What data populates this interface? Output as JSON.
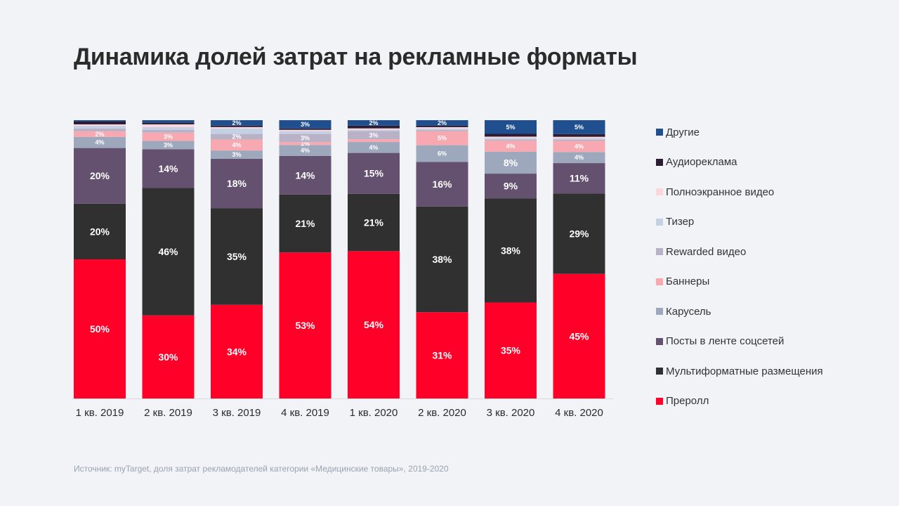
{
  "title": "Динамика долей затрат на рекламные форматы",
  "source": "Источник: myTarget, доля затрат рекламодателей категории «Медицинские товары», 2019-2020",
  "chart_data": {
    "type": "bar",
    "stacked": true,
    "normalized_percent": true,
    "title": "Динамика долей затрат на рекламные форматы",
    "xlabel": "",
    "ylabel": "",
    "ylim": [
      0,
      100
    ],
    "grid": false,
    "legend_position": "right",
    "categories": [
      "1 кв. 2019",
      "2 кв. 2019",
      "3 кв. 2019",
      "4 кв. 2019",
      "1 кв. 2020",
      "2 кв. 2020",
      "3 кв. 2020",
      "4 кв. 2020"
    ],
    "series": [
      {
        "name": "Преролл",
        "color": "#ff0028",
        "values": [
          50,
          30,
          34,
          53,
          54,
          31,
          35,
          45
        ]
      },
      {
        "name": "Мультиформатные размещения",
        "color": "#303030",
        "values": [
          20,
          46,
          35,
          21,
          21,
          38,
          38,
          29
        ]
      },
      {
        "name": "Посты в ленте соцсетей",
        "color": "#64506f",
        "values": [
          20,
          14,
          18,
          14,
          15,
          16,
          9,
          11
        ]
      },
      {
        "name": "Карусель",
        "color": "#9ea8bd",
        "values": [
          4,
          3,
          3,
          4,
          4,
          6,
          8,
          4
        ]
      },
      {
        "name": "Баннеры",
        "color": "#f8a8b0",
        "values": [
          2,
          3,
          4,
          1,
          1,
          5,
          4,
          4
        ]
      },
      {
        "name": "Rewarded видео",
        "color": "#b9b2c6",
        "values": [
          1,
          1,
          2,
          3,
          3,
          0.5,
          0.5,
          0.5
        ]
      },
      {
        "name": "Тизер",
        "color": "#c4d0e4",
        "values": [
          1,
          1,
          2,
          1,
          0.5,
          0.5,
          0.5,
          0.5
        ]
      },
      {
        "name": "Полноэкранное видео",
        "color": "#fbd6da",
        "values": [
          0.5,
          1,
          0.5,
          0.5,
          0.5,
          0.5,
          0.5,
          0.5
        ]
      },
      {
        "name": "Аудиореклама",
        "color": "#2d1a33",
        "values": [
          1,
          0.5,
          0.5,
          0.5,
          1,
          0.5,
          1,
          1
        ]
      },
      {
        "name": "Другие",
        "color": "#1f4f8f",
        "values": [
          0.5,
          1,
          2,
          3,
          2,
          2,
          5,
          5
        ]
      }
    ],
    "bar_labels": [
      [
        "50%",
        "30%",
        "34%",
        "53%",
        "54%",
        "31%",
        "35%",
        "45%"
      ],
      [
        "20%",
        "46%",
        "35%",
        "21%",
        "21%",
        "38%",
        "38%",
        "29%"
      ],
      [
        "20%",
        "14%",
        "18%",
        "14%",
        "15%",
        "16%",
        "9%",
        "11%"
      ],
      [
        "4%",
        "3%",
        "3%",
        "4%",
        "4%",
        "6%",
        "8%",
        "4%"
      ],
      [
        "2%",
        "3%",
        "4%",
        "1%",
        "",
        "5%",
        "4%",
        "4%"
      ],
      [
        "",
        "",
        "2%",
        "3%",
        "3%",
        "",
        "",
        ""
      ],
      [
        "",
        "",
        "",
        "",
        "",
        "",
        "",
        ""
      ],
      [
        "",
        "",
        "",
        "",
        "",
        "",
        "",
        ""
      ],
      [
        "",
        "",
        "",
        "",
        "",
        "",
        "",
        ""
      ],
      [
        "",
        "",
        "2%",
        "3%",
        "2%",
        "2%",
        "5%",
        "5%"
      ]
    ]
  }
}
